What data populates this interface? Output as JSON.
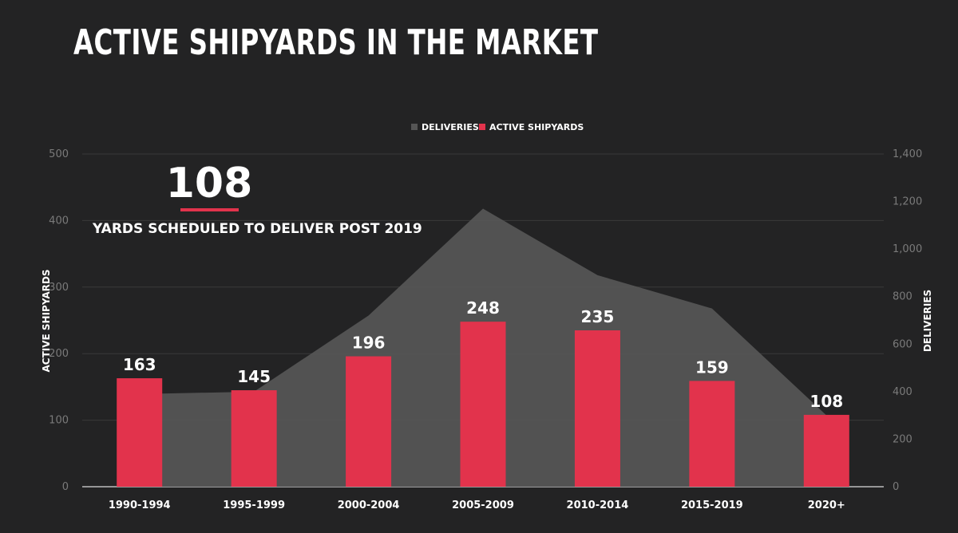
{
  "title": "ACTIVE SHIPYARDS IN THE MARKET",
  "callout": {
    "value": "108",
    "text": "YARDS SCHEDULED TO DELIVER POST 2019"
  },
  "colors": {
    "background": "#232324",
    "bars": "#e2334c",
    "area": "#555555",
    "grid": "#3a3a3a"
  },
  "chart_data": {
    "type": "bar",
    "categories": [
      "1990-1994",
      "1995-1999",
      "2000-2004",
      "2005-2009",
      "2010-2014",
      "2015-2019",
      "2020+"
    ],
    "series": [
      {
        "name": "ACTIVE SHIPYARDS",
        "type": "bar",
        "axis": "left",
        "values": [
          163,
          145,
          196,
          248,
          235,
          159,
          108
        ]
      },
      {
        "name": "DELIVERIES",
        "type": "area",
        "axis": "right",
        "values": [
          390,
          400,
          720,
          1170,
          890,
          750,
          300
        ]
      }
    ],
    "ylabel": "ACTIVE SHIPYARDS",
    "y2label": "DELIVERIES",
    "ylim": [
      0,
      500
    ],
    "y2lim": [
      0,
      1400
    ],
    "yticks": [
      "0",
      "100",
      "200",
      "300",
      "400",
      "500"
    ],
    "y2ticks": [
      "0",
      "200",
      "400",
      "600",
      "800",
      "1,000",
      "1,200",
      "1,400"
    ],
    "legend": [
      "DELIVERIES",
      "ACTIVE SHIPYARDS"
    ],
    "legend_position": "top-center",
    "grid": true
  }
}
